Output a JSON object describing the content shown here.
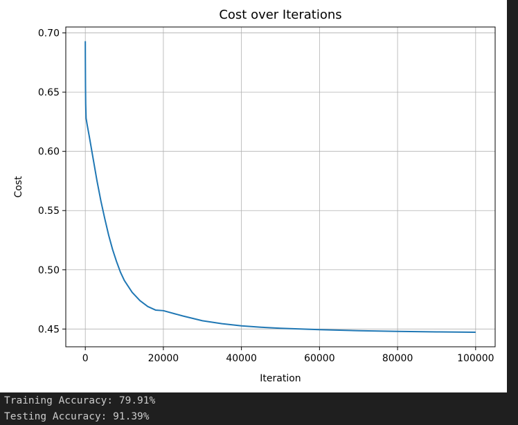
{
  "chart_data": {
    "type": "line",
    "title": "Cost over Iterations",
    "xlabel": "Iteration",
    "ylabel": "Cost",
    "xlim": [
      -5000,
      105000
    ],
    "ylim": [
      0.435,
      0.705
    ],
    "xticks": [
      0,
      20000,
      40000,
      60000,
      80000,
      100000
    ],
    "xtick_labels": [
      "0",
      "20000",
      "40000",
      "60000",
      "80000",
      "100000"
    ],
    "yticks": [
      0.45,
      0.5,
      0.55,
      0.6,
      0.65,
      0.7
    ],
    "ytick_labels": [
      "0.45",
      "0.50",
      "0.55",
      "0.60",
      "0.65",
      "0.70"
    ],
    "grid": true,
    "series": [
      {
        "color": "#1f77b4",
        "x": [
          0,
          10,
          50,
          100,
          200,
          500,
          1000,
          2000,
          3000,
          4000,
          5000,
          6000,
          7000,
          8000,
          9000,
          10000,
          12000,
          14000,
          16000,
          18000,
          20000,
          25000,
          30000,
          35000,
          40000,
          45000,
          50000,
          60000,
          70000,
          80000,
          90000,
          100000
        ],
        "y": [
          0.693,
          0.68,
          0.655,
          0.64,
          0.628,
          0.622,
          0.613,
          0.594,
          0.575,
          0.558,
          0.543,
          0.529,
          0.517,
          0.507,
          0.498,
          0.491,
          0.481,
          0.474,
          0.469,
          0.466,
          0.4655,
          0.461,
          0.457,
          0.4545,
          0.4527,
          0.4515,
          0.4506,
          0.4495,
          0.4486,
          0.448,
          0.4476,
          0.4473
        ]
      }
    ]
  },
  "output": {
    "training_accuracy": "Training Accuracy: 79.91%",
    "testing_accuracy": "Testing Accuracy: 91.39%"
  }
}
